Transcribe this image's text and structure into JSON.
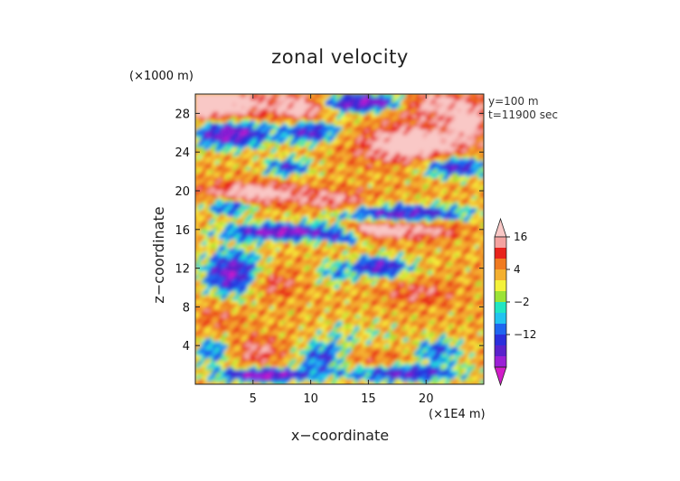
{
  "chart_data": {
    "type": "heatmap",
    "title": "zonal velocity",
    "xlabel": "x−coordinate",
    "ylabel": "z−coordinate",
    "x_scale_label": "(×1E4 m)",
    "y_scale_label": "(×1000 m)",
    "annotations": [
      "y=100 m",
      "t=11900 sec"
    ],
    "xlim": [
      0,
      25
    ],
    "ylim": [
      0,
      30
    ],
    "x_ticks": [
      5,
      10,
      15,
      20
    ],
    "y_ticks": [
      4,
      8,
      12,
      16,
      20,
      24,
      28
    ],
    "colorbar": {
      "tick_labels": [
        "16",
        "4",
        "−2",
        "−12"
      ],
      "levels": [
        -20,
        -16,
        -12,
        -8,
        -4,
        -2,
        0,
        2,
        4,
        8,
        12,
        16,
        20
      ],
      "colors": [
        "#d11cc8",
        "#9b1fd6",
        "#5a22cc",
        "#2b2fdc",
        "#1f66f0",
        "#22c3f0",
        "#21e6c2",
        "#9be336",
        "#f4f23a",
        "#f4b030",
        "#f07a20",
        "#e8231c",
        "#f4a3a0",
        "#f9c8c6"
      ]
    },
    "grid": false
  }
}
